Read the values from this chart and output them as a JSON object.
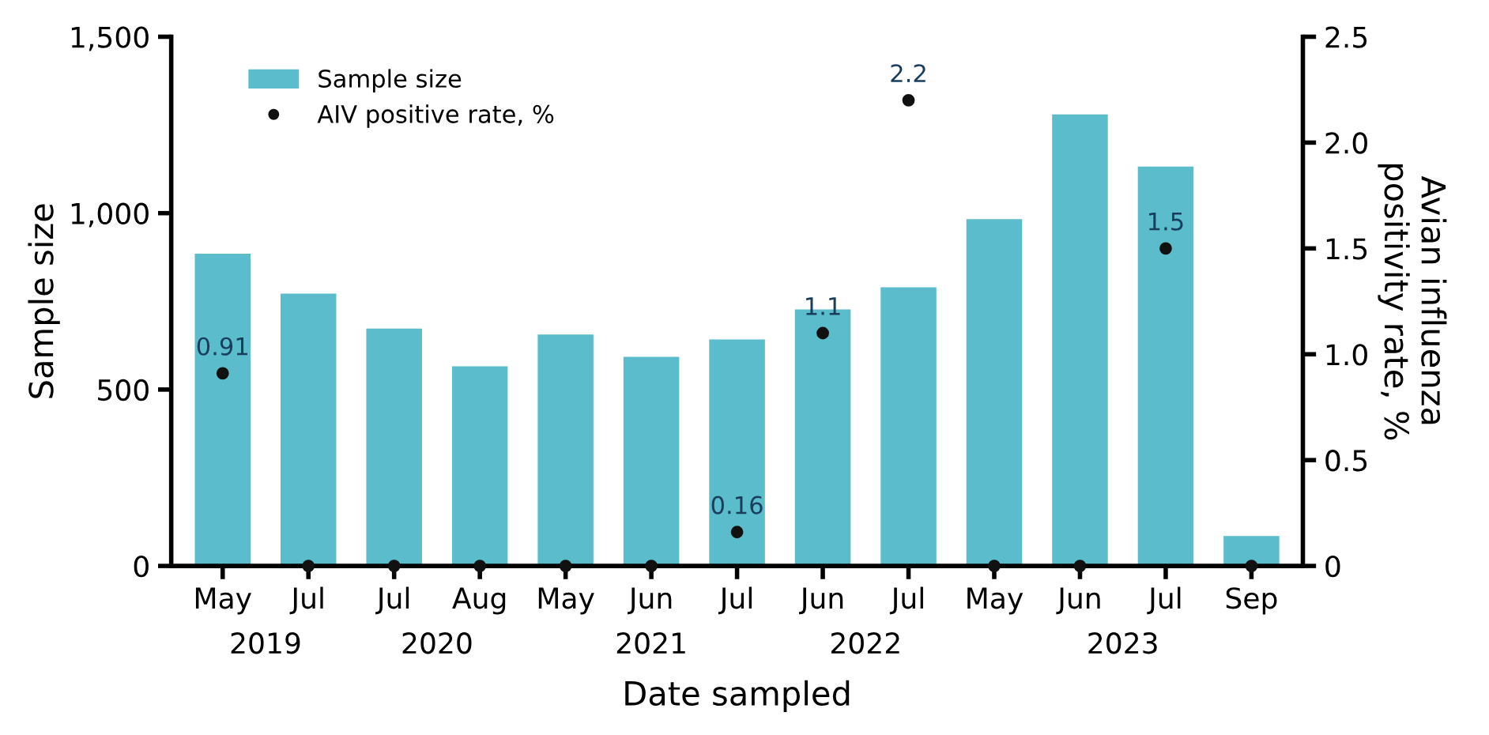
{
  "chart_data": {
    "type": "bar",
    "xlabel": "Date sampled",
    "ylabel": "Sample size",
    "y2label": "Avian influenza\npositivity rate, %",
    "categories": [
      "May",
      "Jul",
      "Jul",
      "Aug",
      "May",
      "Jun",
      "Jul",
      "Jun",
      "Jul",
      "May",
      "Jun",
      "Jul",
      "Sep"
    ],
    "series": [
      {
        "name": "Sample size",
        "color": "#5bbccc",
        "values": [
          885,
          772,
          673,
          566,
          656,
          593,
          642,
          727,
          790,
          983,
          1280,
          1132,
          85
        ]
      },
      {
        "name": "AIV positive rate, %",
        "type": "scatter",
        "axis": "y2",
        "color": "#111111",
        "marker": "circle",
        "values": [
          0.91,
          0,
          0,
          0,
          0,
          0,
          0.16,
          1.1,
          2.2,
          0,
          0,
          1.5,
          0
        ],
        "value_labels": [
          "0.91",
          null,
          null,
          null,
          null,
          null,
          "0.16",
          "1.1",
          "2.2",
          null,
          null,
          "1.5",
          null
        ]
      }
    ],
    "ylim": [
      0,
      1500
    ],
    "yticks": [
      0,
      500,
      {
        "value": 1000,
        "label": "1,000"
      },
      {
        "value": 1500,
        "label": "1,500"
      }
    ],
    "y2lim": [
      0,
      2.5
    ],
    "y2ticks": [
      {
        "value": 0,
        "label": "0"
      },
      0.5,
      {
        "value": 1,
        "label": "1.0"
      },
      1.5,
      {
        "value": 2,
        "label": "2.0"
      },
      2.5
    ],
    "annotations": [
      "2019",
      "2020",
      "2021",
      "2022",
      "2023"
    ],
    "grid": false,
    "legend": "top left"
  }
}
